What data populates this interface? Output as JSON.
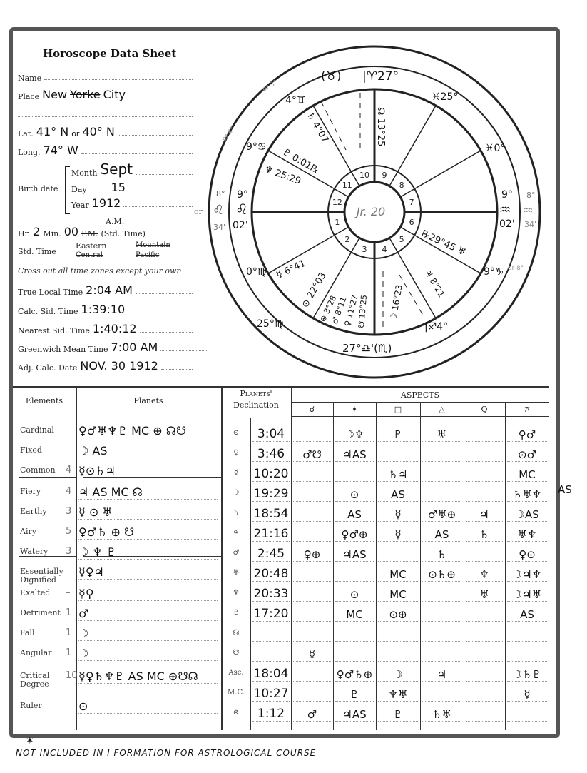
{
  "header": {
    "title": "Horoscope Data Sheet"
  },
  "form": {
    "name_label": "Name",
    "name_value": "",
    "place_label": "Place",
    "place_value_1": "New",
    "place_value_struck": "Yorke",
    "place_value_2": "City",
    "lat_label": "Lat.",
    "lat_value": "41° N",
    "lat_or": "or",
    "lat_alt": "40° N",
    "long_label": "Long.",
    "long_value": "74° W",
    "birth_date_label": "Birth date",
    "month_label": "Month",
    "month_value": "Sept",
    "day_label": "Day",
    "day_value": "15",
    "year_label": "Year",
    "year_value": "1912",
    "or_note": "or",
    "hr_label": "Hr.",
    "hr_value": "2",
    "min_label": "Min.",
    "min_value": "00",
    "am_label": "A.M.",
    "pm_struck": "P.M.",
    "std_time_suffix": "(Std. Time)",
    "std_time_label": "Std. Time",
    "zones": {
      "eastern": "Eastern",
      "central": "Central",
      "mountain": "Mountain",
      "pacific": "Pacific"
    },
    "instruction": "Cross out all time zones except your own",
    "true_local_label": "True Local Time",
    "true_local_value": "2:04 AM",
    "calc_sid_label": "Calc. Sid. Time",
    "calc_sid_value": "1:39:10",
    "nearest_sid_label": "Nearest Sid. Time",
    "nearest_sid_value": "1:40:12",
    "gmt_label": "Greenwich Mean Time",
    "gmt_value": "7:00 AM",
    "adj_date_label": "Adj. Calc. Date",
    "adj_date_value": "NOV. 30 1912"
  },
  "wheel": {
    "house_numbers": [
      "1",
      "2",
      "3",
      "4",
      "5",
      "6",
      "7",
      "8",
      "9",
      "10",
      "11",
      "12"
    ],
    "center_note": "Jr. 20",
    "labels": {
      "mc": "|♈27°",
      "mc_alt": "(♉)",
      "c11": "4°♊",
      "c11_alt": "or 3°",
      "c9": "♓25°",
      "c12": "9°♋",
      "c12_alt": "or 8°",
      "c8": "♓0°",
      "asc_deg": "9°",
      "asc_sign": "♌",
      "asc_min": "02'",
      "asc_alt_deg": "8°",
      "asc_alt_sign": "♌",
      "asc_alt_min": "34'",
      "dsc_deg": "9°",
      "dsc_sign": "♒",
      "dsc_min": "02'",
      "dsc_alt_deg": "8°",
      "dsc_alt_sign": "♒",
      "dsc_alt_min": "34'",
      "c6": "9°♑",
      "c6_alt": "or 8°",
      "c2": "0°♍",
      "c3": "25°♍",
      "ic": "27°♎'(♏)",
      "c5": "|♐4°",
      "saturn": "♄ 4°07",
      "node": "☊ 13°25",
      "pluto": "♇ 0:01℞",
      "neptune": "♆ 25:29",
      "uranus": "℞29°45 ♅",
      "mercury": "☿ 6°41",
      "sun": "⊙ 22°03",
      "fortune": "⊕ 3°28",
      "mars": "♂ 8°11",
      "venus": "♀ 11°27",
      "snode": "☋ 13°25",
      "moon": "☽ 16°23",
      "jupiter": "♃ 8°21"
    }
  },
  "elements": {
    "header": "Elements",
    "planets_header": "Planets",
    "rows": [
      {
        "name": "Cardinal",
        "count": "",
        "planets": "♀♂♅♆♇ MC ⊕ ☊☋"
      },
      {
        "name": "Fixed",
        "count": "–",
        "planets": "☽ AS"
      },
      {
        "name": "Common",
        "count": "4",
        "planets": "☿⊙♄♃"
      },
      {
        "name": "Fiery",
        "count": "4",
        "planets": "♃ AS MC ☊"
      },
      {
        "name": "Earthy",
        "count": "3",
        "planets": "☿ ⊙ ♅"
      },
      {
        "name": "Airy",
        "count": "5",
        "planets": "♀♂♄ ⊕ ☋"
      },
      {
        "name": "Watery",
        "count": "3",
        "planets": "☽ ♆ ♇"
      },
      {
        "name": "Essentially Dignified",
        "count": "",
        "planets": "☿♀♃"
      },
      {
        "name": "Exalted",
        "count": "–",
        "planets": "☿♀"
      },
      {
        "name": "Detriment",
        "count": "1",
        "planets": "♂"
      },
      {
        "name": "Fall",
        "count": "1",
        "planets": "☽"
      },
      {
        "name": "Angular",
        "count": "1",
        "planets": "☽"
      },
      {
        "name": "Critical Degree",
        "count": "10",
        "planets": "☿♀♄♆♇ AS MC ⊕☋☊"
      },
      {
        "name": "Ruler",
        "count": "",
        "planets": "⊙"
      }
    ]
  },
  "declination": {
    "header_1": "Planets'",
    "header_2": "Declination",
    "rows": [
      {
        "symbol": "⊙",
        "value": "3:04"
      },
      {
        "symbol": "♀",
        "value": "3:46"
      },
      {
        "symbol": "☿",
        "value": "10:20"
      },
      {
        "symbol": "☽",
        "value": "19:29"
      },
      {
        "symbol": "♄",
        "value": "18:54"
      },
      {
        "symbol": "♃",
        "value": "21:16"
      },
      {
        "symbol": "♂",
        "value": "2:45"
      },
      {
        "symbol": "♅",
        "value": "20:48"
      },
      {
        "symbol": "♆",
        "value": "20:33"
      },
      {
        "symbol": "♇",
        "value": "17:20"
      },
      {
        "symbol": "☊",
        "value": ""
      },
      {
        "symbol": "☋",
        "value": ""
      },
      {
        "symbol": "Asc.",
        "value": "18:04"
      },
      {
        "symbol": "M.C.",
        "value": "10:27"
      },
      {
        "symbol": "⊗",
        "value": "1:12"
      }
    ]
  },
  "aspects": {
    "header": "ASPECTS",
    "columns": [
      "☌",
      "✶",
      "□",
      "△",
      "Q",
      "⚻"
    ],
    "rows": [
      [
        "",
        "☽♆",
        "♇",
        "♅",
        "",
        "♀♂"
      ],
      [
        "♂☋",
        "♃AS",
        "",
        "",
        "",
        "⊙♂"
      ],
      [
        "",
        "",
        "♄♃",
        "",
        "",
        "MC"
      ],
      [
        "",
        "⊙",
        "AS",
        "",
        "",
        "♄♅♆"
      ],
      [
        "",
        "AS",
        "☿",
        "♂♅⊕",
        "♃",
        "☽AS"
      ],
      [
        "",
        "♀♂⊕",
        "☿",
        "AS",
        "♄",
        "♅♆"
      ],
      [
        "♀⊕",
        "♃AS",
        "",
        "♄",
        "",
        "♀⊙"
      ],
      [
        "",
        "",
        "MC",
        "⊙♄⊕",
        "♆",
        "☽♃♆"
      ],
      [
        "",
        "⊙",
        "MC",
        "",
        "♅",
        "☽♃♅"
      ],
      [
        "",
        "MC",
        "⊙⊕",
        "",
        "",
        "AS"
      ],
      [
        "",
        "",
        "",
        "",
        "",
        ""
      ],
      [
        "☿",
        "",
        "",
        "",
        "",
        ""
      ],
      [
        "",
        "♀♂♄⊕",
        "☽",
        "♃",
        "",
        "☽♄♇"
      ],
      [
        "",
        "♇",
        "♆♅",
        "",
        "",
        "☿"
      ],
      [
        "♂",
        "♃AS",
        "♇",
        "♄♅",
        "",
        ""
      ]
    ],
    "margin_note": "AS"
  },
  "footer": {
    "star": "✶",
    "note": "NOT INCLUDED IN I FORMATION FOR ASTROLOGICAL COURSE"
  }
}
